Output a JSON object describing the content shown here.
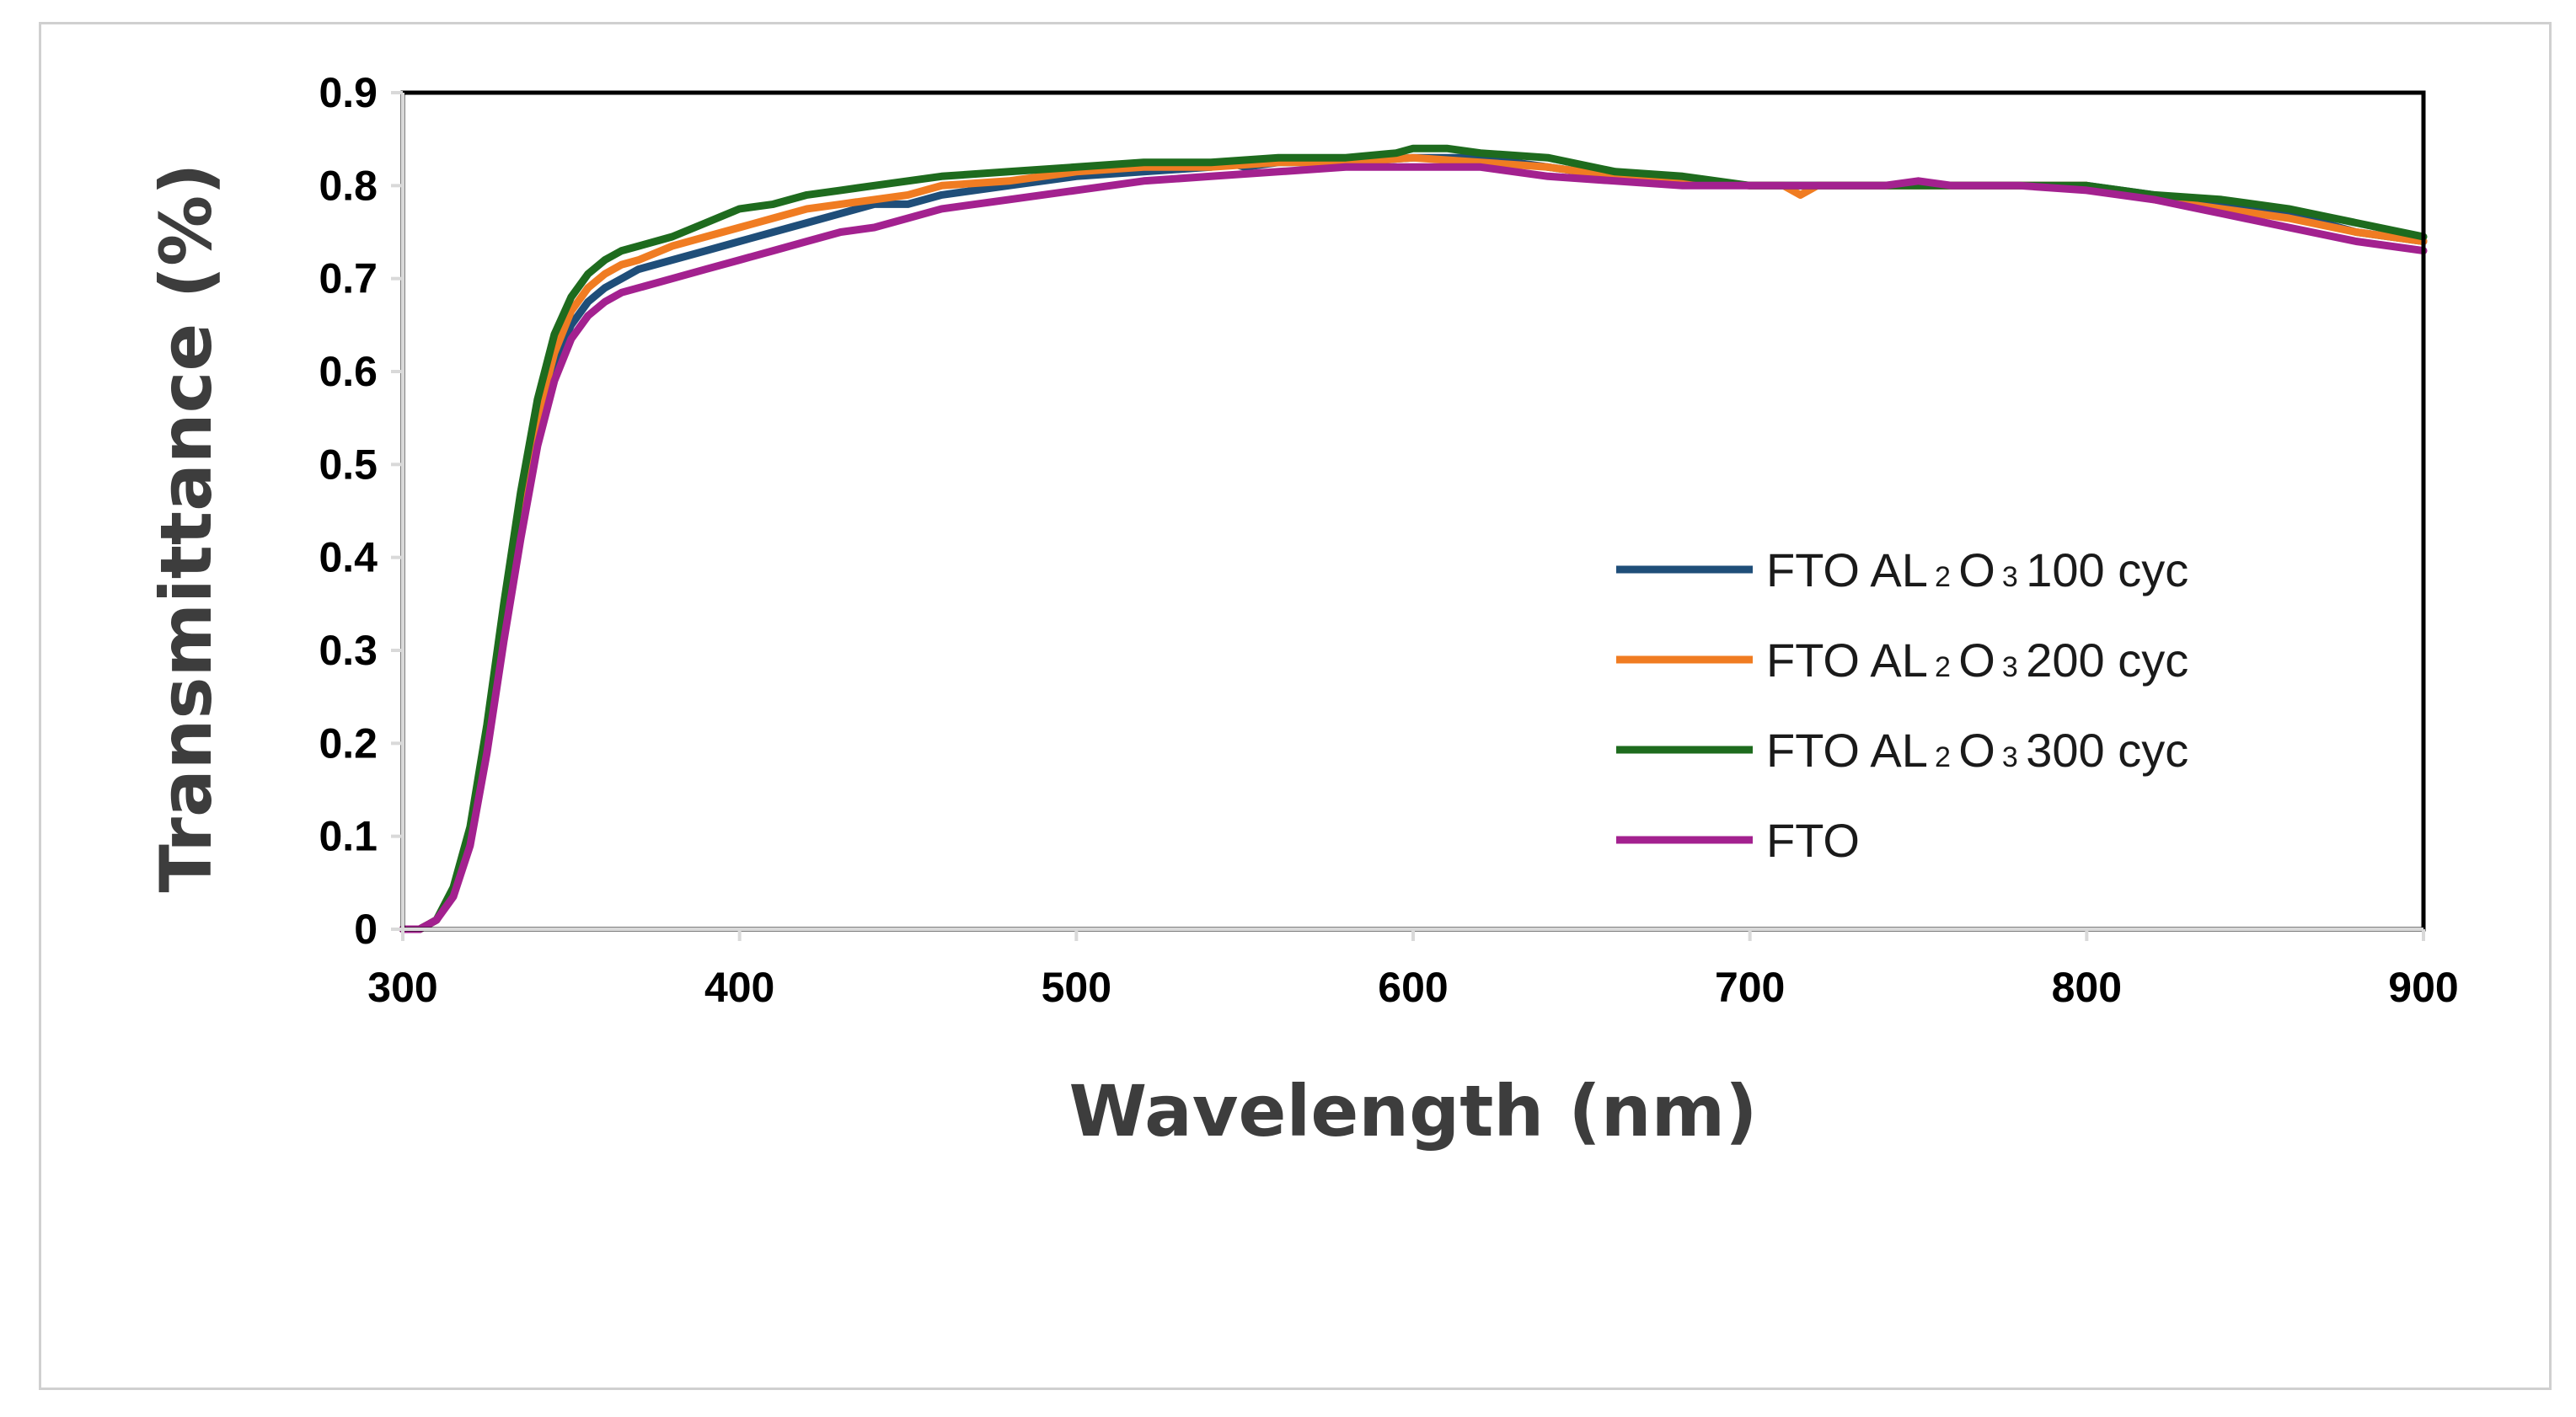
{
  "chart_data": {
    "type": "line",
    "title": "",
    "xlabel": "Wavelength (nm)",
    "ylabel": "Transmittance (%)",
    "xlim": [
      300,
      900
    ],
    "ylim": [
      0,
      0.9
    ],
    "xticks": [
      "300",
      "400",
      "500",
      "600",
      "700",
      "800",
      "900"
    ],
    "yticks": [
      "0",
      "0.1",
      "0.2",
      "0.3",
      "0.4",
      "0.5",
      "0.6",
      "0.7",
      "0.8",
      "0.9"
    ],
    "grid": false,
    "legend_position": "center-right",
    "series": [
      {
        "name": "FTO AL2O3 100 cyc",
        "legend": {
          "prefix": "FTO AL",
          "sub1": "2",
          "mid": "O",
          "sub2": "3",
          "suffix": "100 cyc"
        },
        "color": "#1f4e79",
        "x": [
          300,
          305,
          310,
          315,
          320,
          325,
          330,
          335,
          340,
          345,
          350,
          355,
          360,
          365,
          370,
          380,
          390,
          400,
          410,
          420,
          430,
          440,
          450,
          460,
          480,
          500,
          520,
          540,
          545,
          550,
          560,
          580,
          600,
          620,
          640,
          660,
          680,
          700,
          720,
          740,
          760,
          780,
          800,
          820,
          840,
          860,
          880,
          900
        ],
        "y": [
          0,
          0,
          0.01,
          0.04,
          0.1,
          0.2,
          0.32,
          0.44,
          0.54,
          0.61,
          0.65,
          0.675,
          0.69,
          0.7,
          0.71,
          0.72,
          0.73,
          0.74,
          0.75,
          0.76,
          0.77,
          0.78,
          0.78,
          0.79,
          0.8,
          0.81,
          0.815,
          0.82,
          0.825,
          0.82,
          0.825,
          0.825,
          0.83,
          0.83,
          0.82,
          0.81,
          0.805,
          0.8,
          0.8,
          0.8,
          0.8,
          0.8,
          0.8,
          0.79,
          0.78,
          0.77,
          0.75,
          0.74
        ]
      },
      {
        "name": "FTO AL2O3 200 cyc",
        "legend": {
          "prefix": "FTO AL",
          "sub1": "2",
          "mid": "O",
          "sub2": "3",
          "suffix": "200 cyc"
        },
        "color": "#f07c22",
        "x": [
          300,
          305,
          310,
          315,
          320,
          325,
          330,
          335,
          340,
          345,
          350,
          355,
          360,
          365,
          370,
          380,
          390,
          400,
          410,
          420,
          430,
          440,
          450,
          460,
          480,
          500,
          520,
          540,
          560,
          580,
          600,
          620,
          640,
          660,
          680,
          700,
          710,
          715,
          720,
          730,
          740,
          760,
          780,
          800,
          820,
          840,
          860,
          880,
          900
        ],
        "y": [
          0,
          0,
          0.01,
          0.04,
          0.1,
          0.21,
          0.33,
          0.45,
          0.55,
          0.62,
          0.665,
          0.69,
          0.705,
          0.715,
          0.72,
          0.735,
          0.745,
          0.755,
          0.765,
          0.775,
          0.78,
          0.785,
          0.79,
          0.8,
          0.805,
          0.815,
          0.82,
          0.82,
          0.825,
          0.825,
          0.83,
          0.825,
          0.82,
          0.81,
          0.805,
          0.8,
          0.8,
          0.79,
          0.8,
          0.8,
          0.8,
          0.8,
          0.8,
          0.8,
          0.785,
          0.775,
          0.765,
          0.75,
          0.74
        ]
      },
      {
        "name": "FTO AL2O3 300 cyc",
        "legend": {
          "prefix": "FTO AL",
          "sub1": "2",
          "mid": "O",
          "sub2": "3",
          "suffix": "300 cyc"
        },
        "color": "#1e6b1e",
        "x": [
          300,
          305,
          310,
          315,
          320,
          325,
          330,
          335,
          340,
          345,
          350,
          355,
          360,
          365,
          370,
          380,
          390,
          400,
          410,
          420,
          430,
          440,
          450,
          460,
          480,
          500,
          520,
          540,
          560,
          580,
          595,
          600,
          610,
          620,
          640,
          660,
          680,
          700,
          720,
          740,
          760,
          780,
          800,
          820,
          840,
          860,
          880,
          900
        ],
        "y": [
          0,
          0,
          0.01,
          0.045,
          0.11,
          0.22,
          0.35,
          0.47,
          0.57,
          0.64,
          0.68,
          0.705,
          0.72,
          0.73,
          0.735,
          0.745,
          0.76,
          0.775,
          0.78,
          0.79,
          0.795,
          0.8,
          0.805,
          0.81,
          0.815,
          0.82,
          0.825,
          0.825,
          0.83,
          0.83,
          0.835,
          0.84,
          0.84,
          0.835,
          0.83,
          0.815,
          0.81,
          0.8,
          0.8,
          0.8,
          0.8,
          0.8,
          0.8,
          0.79,
          0.785,
          0.775,
          0.76,
          0.745
        ]
      },
      {
        "name": "FTO",
        "legend": {
          "prefix": "FTO",
          "sub1": "",
          "mid": "",
          "sub2": "",
          "suffix": ""
        },
        "color": "#a3218f",
        "x": [
          300,
          305,
          310,
          315,
          320,
          325,
          330,
          335,
          340,
          345,
          350,
          355,
          360,
          365,
          370,
          380,
          390,
          400,
          410,
          420,
          430,
          440,
          450,
          460,
          480,
          500,
          520,
          540,
          560,
          580,
          600,
          620,
          640,
          660,
          680,
          700,
          720,
          740,
          750,
          760,
          780,
          800,
          820,
          840,
          860,
          880,
          900
        ],
        "y": [
          0,
          0,
          0.01,
          0.035,
          0.09,
          0.19,
          0.31,
          0.42,
          0.52,
          0.59,
          0.635,
          0.66,
          0.675,
          0.685,
          0.69,
          0.7,
          0.71,
          0.72,
          0.73,
          0.74,
          0.75,
          0.755,
          0.765,
          0.775,
          0.785,
          0.795,
          0.805,
          0.81,
          0.815,
          0.82,
          0.82,
          0.82,
          0.81,
          0.805,
          0.8,
          0.8,
          0.8,
          0.8,
          0.805,
          0.8,
          0.8,
          0.795,
          0.785,
          0.77,
          0.755,
          0.74,
          0.73
        ]
      }
    ]
  }
}
